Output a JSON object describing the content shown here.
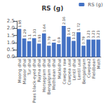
{
  "chart_data": {
    "type": "bar",
    "title": "RS (g)",
    "categories": [
      "Moong dhal",
      "Masoor dhal",
      "Tur dhal",
      "Peas black-eyed dhal",
      "Rajma dhal",
      "Horsegram dhal",
      "Bengalgram dhal",
      "Mothbean dhal",
      "Matkidhal",
      "Cowpea raw",
      "Cowpea usal",
      "Lentil dhal",
      "Lentil usal",
      "Bengalgram",
      "Cowpea2",
      "Fieldbean",
      "Moth"
    ],
    "series": [
      {
        "name": "RS (g)",
        "color": "#4472C4",
        "values": [
          1.95,
          1.29,
          1.1,
          1.31,
          0.93,
          1.64,
          0.79,
          1.0,
          0.9,
          2.16,
          1.41,
          1.12,
          1.72,
          0.79,
          1.21,
          1.21,
          1.21
        ],
        "value_labels": [
          "1.95",
          "1.29",
          "1.1",
          "1.31",
          "0.93",
          "1.64",
          "0.79",
          "1",
          "0.9",
          "2.16",
          "1.41",
          "1.12",
          "1.72",
          "0.79",
          "1.21",
          "1.21",
          "1.21"
        ]
      }
    ],
    "ylim": [
      0,
      2.5
    ],
    "yticks": [
      {
        "value": 0,
        "label": "0.0"
      },
      {
        "value": 0.5,
        "label": "0.5"
      },
      {
        "value": 1.0,
        "label": "1.0"
      },
      {
        "value": 1.5,
        "label": "1.5"
      },
      {
        "value": 2.0,
        "label": "2.0"
      },
      {
        "value": 2.5,
        "label": "2.5"
      }
    ],
    "grid": false,
    "legend": "upper right",
    "data_labels": true
  }
}
